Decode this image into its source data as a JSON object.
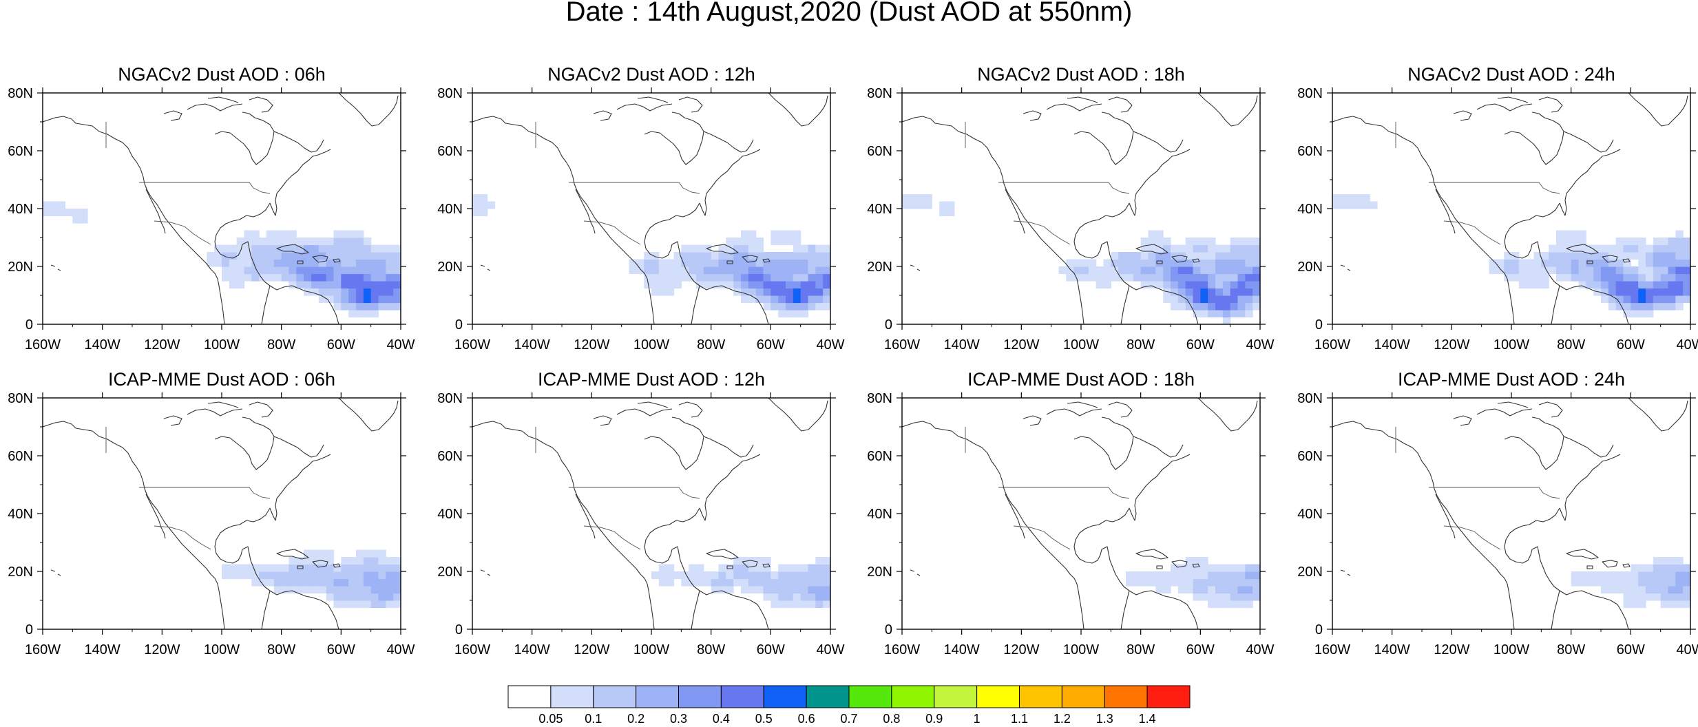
{
  "figure": {
    "title": "Date : 14th August,2020 (Dust AOD at 550nm)"
  },
  "axes": {
    "x_ticks": [
      "160W",
      "140W",
      "120W",
      "100W",
      "80W",
      "60W",
      "40W"
    ],
    "x_tick_values": [
      -160,
      -140,
      -120,
      -100,
      -80,
      -60,
      -40
    ],
    "y_ticks": [
      "0",
      "20N",
      "40N",
      "60N",
      "80N"
    ],
    "y_tick_values": [
      0,
      20,
      40,
      60,
      80
    ],
    "lon_range": [
      -160,
      -40
    ],
    "lat_range": [
      0,
      80
    ]
  },
  "panels": [
    {
      "title": "NGACv2 Dust AOD : 06h"
    },
    {
      "title": "NGACv2 Dust AOD : 12h"
    },
    {
      "title": "NGACv2 Dust AOD : 18h"
    },
    {
      "title": "NGACv2 Dust AOD : 24h"
    },
    {
      "title": "ICAP-MME Dust AOD : 06h"
    },
    {
      "title": "ICAP-MME Dust AOD : 12h"
    },
    {
      "title": "ICAP-MME Dust AOD : 18h"
    },
    {
      "title": "ICAP-MME Dust AOD : 24h"
    }
  ],
  "colorbar": {
    "labels": [
      "0.05",
      "0.1",
      "0.2",
      "0.3",
      "0.4",
      "0.5",
      "0.6",
      "0.7",
      "0.8",
      "0.9",
      "1",
      "1.1",
      "1.2",
      "1.3",
      "1.4"
    ],
    "colors": [
      "#ffffff",
      "#d3dffa",
      "#b8c9f7",
      "#9db3f5",
      "#8198f2",
      "#6677ef",
      "#0f62f5",
      "#00958c",
      "#56e80c",
      "#8ff500",
      "#c4f53d",
      "#ffff00",
      "#ffc400",
      "#ffab00",
      "#ff7300",
      "#ff1e10"
    ]
  },
  "map_data": {
    "field": "Dust AOD at 550nm",
    "panels": [
      {
        "plume": [
          [
            -98,
            23,
            0.12
          ],
          [
            -95,
            17,
            0.1
          ],
          [
            -88,
            19,
            0.15
          ],
          [
            -85,
            24,
            0.2
          ],
          [
            -80,
            21,
            0.25
          ],
          [
            -76,
            23,
            0.25
          ],
          [
            -72,
            19,
            0.35
          ],
          [
            -70,
            24,
            0.3
          ],
          [
            -67,
            17,
            0.45
          ],
          [
            -63,
            19,
            0.3
          ],
          [
            -60,
            22,
            0.2
          ],
          [
            -58,
            28,
            0.15
          ],
          [
            -55,
            25,
            0.15
          ],
          [
            -56,
            15,
            0.5
          ],
          [
            -52,
            10,
            0.55
          ],
          [
            -48,
            13,
            0.5
          ],
          [
            -45,
            11,
            0.5
          ],
          [
            -42,
            14,
            0.45
          ],
          [
            -50,
            20,
            0.3
          ],
          [
            -45,
            22,
            0.2
          ],
          [
            -62,
            12,
            0.15
          ],
          [
            -90,
            28,
            0.1
          ],
          [
            -80,
            30,
            0.1
          ],
          [
            -157,
            40,
            0.08
          ],
          [
            -148,
            38,
            0.07
          ]
        ]
      },
      {
        "plume": [
          [
            -100,
            20,
            0.12
          ],
          [
            -92,
            17,
            0.1
          ],
          [
            -85,
            22,
            0.18
          ],
          [
            -80,
            18,
            0.22
          ],
          [
            -74,
            20,
            0.25
          ],
          [
            -70,
            22,
            0.28
          ],
          [
            -65,
            16,
            0.45
          ],
          [
            -60,
            20,
            0.25
          ],
          [
            -58,
            13,
            0.5
          ],
          [
            -52,
            10,
            0.55
          ],
          [
            -47,
            12,
            0.5
          ],
          [
            -42,
            15,
            0.45
          ],
          [
            -52,
            20,
            0.3
          ],
          [
            -46,
            23,
            0.18
          ],
          [
            -64,
            12,
            0.15
          ],
          [
            -68,
            28,
            0.1
          ],
          [
            -55,
            30,
            0.08
          ],
          [
            -158,
            41,
            0.08
          ],
          [
            -96,
            14,
            0.1
          ]
        ]
      },
      {
        "plume": [
          [
            -100,
            19,
            0.12
          ],
          [
            -92,
            17,
            0.1
          ],
          [
            -84,
            21,
            0.18
          ],
          [
            -78,
            19,
            0.22
          ],
          [
            -72,
            22,
            0.25
          ],
          [
            -66,
            18,
            0.45
          ],
          [
            -62,
            14,
            0.5
          ],
          [
            -58,
            10,
            0.55
          ],
          [
            -52,
            8,
            0.5
          ],
          [
            -46,
            12,
            0.5
          ],
          [
            -42,
            16,
            0.45
          ],
          [
            -50,
            20,
            0.3
          ],
          [
            -45,
            24,
            0.2
          ],
          [
            -60,
            26,
            0.12
          ],
          [
            -66,
            10,
            0.12
          ],
          [
            -155,
            42,
            0.08
          ],
          [
            -145,
            40,
            0.06
          ],
          [
            -75,
            28,
            0.1
          ]
        ]
      },
      {
        "plume": [
          [
            -100,
            20,
            0.12
          ],
          [
            -93,
            16,
            0.1
          ],
          [
            -84,
            22,
            0.16
          ],
          [
            -78,
            20,
            0.22
          ],
          [
            -72,
            21,
            0.25
          ],
          [
            -67,
            17,
            0.4
          ],
          [
            -62,
            13,
            0.5
          ],
          [
            -57,
            10,
            0.55
          ],
          [
            -50,
            11,
            0.5
          ],
          [
            -45,
            13,
            0.5
          ],
          [
            -42,
            18,
            0.45
          ],
          [
            -48,
            22,
            0.3
          ],
          [
            -44,
            26,
            0.2
          ],
          [
            -60,
            26,
            0.12
          ],
          [
            -158,
            43,
            0.08
          ],
          [
            -150,
            42,
            0.07
          ],
          [
            -80,
            29,
            0.1
          ]
        ]
      },
      {
        "plume": [
          [
            -95,
            20,
            0.1
          ],
          [
            -85,
            19,
            0.12
          ],
          [
            -78,
            17,
            0.15
          ],
          [
            -72,
            20,
            0.18
          ],
          [
            -66,
            18,
            0.2
          ],
          [
            -60,
            16,
            0.22
          ],
          [
            -55,
            20,
            0.2
          ],
          [
            -50,
            17,
            0.25
          ],
          [
            -45,
            14,
            0.3
          ],
          [
            -42,
            18,
            0.28
          ],
          [
            -48,
            12,
            0.2
          ],
          [
            -58,
            12,
            0.15
          ],
          [
            -68,
            24,
            0.1
          ],
          [
            -50,
            23,
            0.12
          ]
        ]
      },
      {
        "plume": [
          [
            -95,
            19,
            0.08
          ],
          [
            -85,
            18,
            0.1
          ],
          [
            -76,
            17,
            0.12
          ],
          [
            -70,
            20,
            0.12
          ],
          [
            -64,
            17,
            0.15
          ],
          [
            -58,
            15,
            0.18
          ],
          [
            -52,
            18,
            0.15
          ],
          [
            -47,
            16,
            0.2
          ],
          [
            -43,
            13,
            0.25
          ],
          [
            -42,
            19,
            0.2
          ],
          [
            -55,
            11,
            0.12
          ],
          [
            -66,
            23,
            0.08
          ]
        ]
      },
      {
        "plume": [
          [
            -80,
            18,
            0.08
          ],
          [
            -72,
            17,
            0.1
          ],
          [
            -66,
            19,
            0.1
          ],
          [
            -60,
            15,
            0.12
          ],
          [
            -55,
            18,
            0.12
          ],
          [
            -50,
            16,
            0.2
          ],
          [
            -45,
            14,
            0.25
          ],
          [
            -42,
            18,
            0.22
          ],
          [
            -52,
            11,
            0.1
          ],
          [
            -62,
            22,
            0.08
          ]
        ]
      },
      {
        "plume": [
          [
            -75,
            18,
            0.08
          ],
          [
            -67,
            17,
            0.1
          ],
          [
            -60,
            15,
            0.1
          ],
          [
            -55,
            18,
            0.12
          ],
          [
            -50,
            15,
            0.18
          ],
          [
            -45,
            13,
            0.22
          ],
          [
            -42,
            17,
            0.25
          ],
          [
            -47,
            20,
            0.15
          ],
          [
            -58,
            11,
            0.08
          ]
        ]
      }
    ]
  }
}
